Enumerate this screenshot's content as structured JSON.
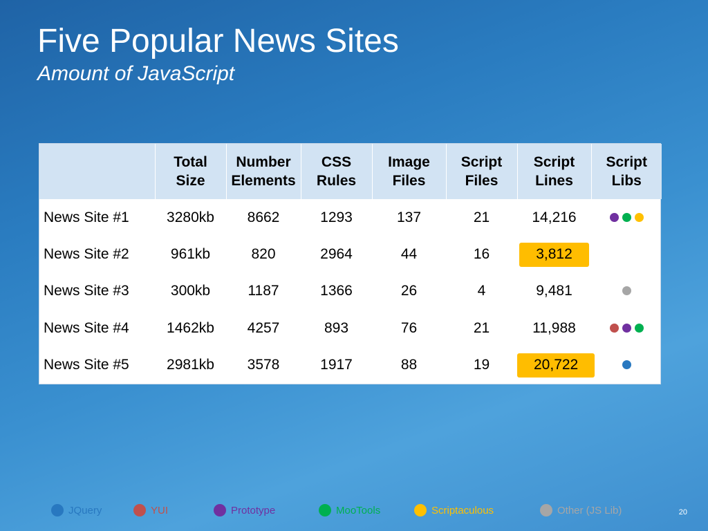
{
  "slide": {
    "title": "Five Popular News Sites",
    "subtitle": "Amount of JavaScript",
    "page_number": "20"
  },
  "colors": {
    "jquery": "#2878c0",
    "yui": "#c0504d",
    "prototype": "#7030a0",
    "mootools": "#00b050",
    "scriptaculous": "#ffc000",
    "other": "#a6a6a6",
    "highlight": "#ffbd00"
  },
  "table": {
    "headers": [
      "",
      "Total Size",
      "Number Elements",
      "CSS Rules",
      "Image Files",
      "Script Files",
      "Script Lines",
      "Script Libs"
    ],
    "rows": [
      {
        "name": "News Site #1",
        "total_size": "3280kb",
        "elements": "8662",
        "css_rules": "1293",
        "image_files": "137",
        "script_files": "21",
        "script_lines": "14,216",
        "highlight": false,
        "libs": [
          "prototype",
          "mootools",
          "scriptaculous"
        ]
      },
      {
        "name": "News Site #2",
        "total_size": "961kb",
        "elements": "820",
        "css_rules": "2964",
        "image_files": "44",
        "script_files": "16",
        "script_lines": "3,812",
        "highlight": true,
        "libs": []
      },
      {
        "name": "News Site #3",
        "total_size": "300kb",
        "elements": "1187",
        "css_rules": "1366",
        "image_files": "26",
        "script_files": "4",
        "script_lines": "9,481",
        "highlight": false,
        "libs": [
          "other"
        ]
      },
      {
        "name": "News Site #4",
        "total_size": "1462kb",
        "elements": "4257",
        "css_rules": "893",
        "image_files": "76",
        "script_files": "21",
        "script_lines": "11,988",
        "highlight": false,
        "libs": [
          "yui",
          "prototype",
          "mootools"
        ]
      },
      {
        "name": "News Site #5",
        "total_size": "2981kb",
        "elements": "3578",
        "css_rules": "1917",
        "image_files": "88",
        "script_files": "19",
        "script_lines": "20,722",
        "highlight": true,
        "libs": [
          "jquery"
        ]
      }
    ]
  },
  "legend": [
    {
      "key": "jquery",
      "label": "JQuery",
      "color": "#2878c0",
      "text_color": "#2878c0"
    },
    {
      "key": "yui",
      "label": "YUI",
      "color": "#c0504d",
      "text_color": "#c0504d"
    },
    {
      "key": "prototype",
      "label": "Prototype",
      "color": "#7030a0",
      "text_color": "#7030a0"
    },
    {
      "key": "mootools",
      "label": "MooTools",
      "color": "#00b050",
      "text_color": "#00b050"
    },
    {
      "key": "scriptaculous",
      "label": "Scriptaculous",
      "color": "#ffc000",
      "text_color": "#ffc000"
    },
    {
      "key": "other",
      "label": "Other (JS Lib)",
      "color": "#a6a6a6",
      "text_color": "#a6a6a6"
    }
  ]
}
